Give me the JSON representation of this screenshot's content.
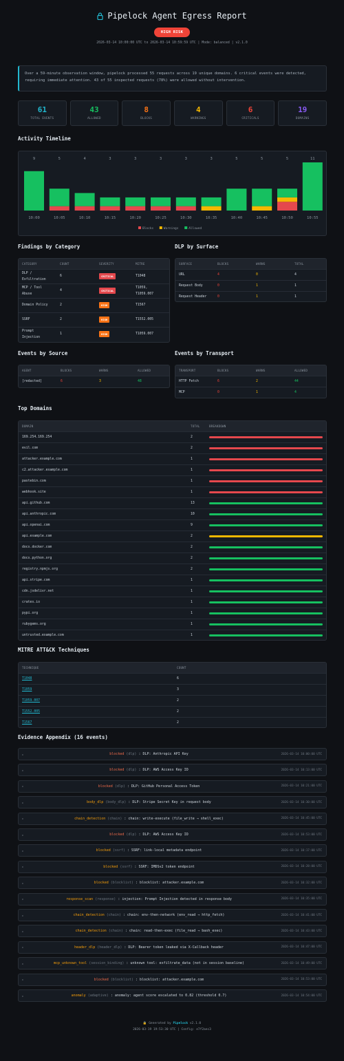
{
  "header": {
    "title": "Pipelock Agent Egress Report",
    "risk_badge": "HIGH RISK",
    "meta": "2026-03-14 10:00:00 UTC to 2026-03-14 10:59:59 UTC  |  Mode: balanced  |  v2.1.0"
  },
  "summary": "Over a 59-minute observation window, pipelock processed 55 requests across 19 unique domains. 6 critical events were detected, requiring immediate attention. 43 of 55 inspected requests (78%) were allowed without intervention.",
  "stats": [
    {
      "value": "61",
      "label": "TOTAL EVENTS",
      "color": "#22b8cf"
    },
    {
      "value": "43",
      "label": "ALLOWED",
      "color": "#16c060"
    },
    {
      "value": "8",
      "label": "BLOCKS",
      "color": "#f97316"
    },
    {
      "value": "4",
      "label": "WARNINGS",
      "color": "#f5b800"
    },
    {
      "value": "6",
      "label": "CRITICALS",
      "color": "#f04438"
    },
    {
      "value": "19",
      "label": "DOMAINS",
      "color": "#8b5cf6"
    }
  ],
  "timeline": {
    "title": "Activity Timeline",
    "chart_data": {
      "type": "bar",
      "categories": [
        "10:00",
        "10:05",
        "10:10",
        "10:15",
        "10:20",
        "10:25",
        "10:30",
        "10:35",
        "10:40",
        "10:45",
        "10:50",
        "10:55"
      ],
      "totals": [
        9,
        5,
        4,
        3,
        3,
        3,
        3,
        3,
        5,
        5,
        5,
        11
      ],
      "series": [
        {
          "name": "Blocks",
          "color": "#e5484d",
          "values": [
            0,
            1,
            1,
            1,
            1,
            1,
            1,
            0,
            0,
            0,
            2,
            0
          ]
        },
        {
          "name": "Warnings",
          "color": "#f5b800",
          "values": [
            0,
            0,
            0,
            0,
            0,
            0,
            0,
            1,
            0,
            1,
            1,
            0
          ]
        },
        {
          "name": "Allowed",
          "color": "#16c060",
          "values": [
            9,
            4,
            3,
            2,
            2,
            2,
            2,
            2,
            5,
            4,
            2,
            11
          ]
        }
      ],
      "legend": "bottom-center"
    }
  },
  "findings": {
    "title": "Findings by Category",
    "columns": [
      "CATEGORY",
      "COUNT",
      "SEVERITY",
      "MITRE"
    ],
    "rows": [
      {
        "category": "DLP / Exfiltration",
        "count": "6",
        "severity": "CRITICAL",
        "sev_color": "#e5484d",
        "mitre": "T1048"
      },
      {
        "category": "MCP / Tool Abuse",
        "count": "4",
        "severity": "CRITICAL",
        "sev_color": "#e5484d",
        "mitre": "T1059, T1059.007"
      },
      {
        "category": "Domain Policy",
        "count": "2",
        "severity": "HIGH",
        "sev_color": "#f97316",
        "mitre": "T1567"
      },
      {
        "category": "SSRF",
        "count": "2",
        "severity": "HIGH",
        "sev_color": "#f97316",
        "mitre": "T1552.005"
      },
      {
        "category": "Prompt Injection",
        "count": "1",
        "severity": "HIGH",
        "sev_color": "#f97316",
        "mitre": "T1059.007"
      }
    ]
  },
  "dlp_surface": {
    "title": "DLP by Surface",
    "columns": [
      "SURFACE",
      "BLOCKS",
      "WARNS",
      "TOTAL"
    ],
    "rows": [
      {
        "surface": "URL",
        "blocks": "4",
        "warns": "0",
        "total": "4"
      },
      {
        "surface": "Request Body",
        "blocks": "0",
        "warns": "1",
        "total": "1"
      },
      {
        "surface": "Request Header",
        "blocks": "0",
        "warns": "1",
        "total": "1"
      }
    ]
  },
  "events_source": {
    "title": "Events by Source",
    "columns": [
      "AGENT",
      "BLOCKS",
      "WARNS",
      "ALLOWED"
    ],
    "rows": [
      {
        "agent": "[redacted]",
        "blocks": "6",
        "warns": "3",
        "allowed": "48"
      }
    ]
  },
  "events_transport": {
    "title": "Events by Transport",
    "columns": [
      "TRANSPORT",
      "BLOCKS",
      "WARNS",
      "ALLOWED"
    ],
    "rows": [
      {
        "transport": "HTTP Fetch",
        "blocks": "6",
        "warns": "2",
        "allowed": "44"
      },
      {
        "transport": "MCP",
        "blocks": "0",
        "warns": "1",
        "allowed": "4"
      }
    ]
  },
  "top_domains": {
    "title": "Top Domains",
    "columns": [
      "DOMAIN",
      "TOTAL",
      "BREAKDOWN"
    ],
    "rows": [
      {
        "domain": "169.254.169.254",
        "total": "2",
        "color": "#e5484d"
      },
      {
        "domain": "evil.com",
        "total": "2",
        "color": "#e5484d"
      },
      {
        "domain": "attacker.example.com",
        "total": "1",
        "color": "#e5484d"
      },
      {
        "domain": "c2.attacker.example.com",
        "total": "1",
        "color": "#e5484d"
      },
      {
        "domain": "pastebin.com",
        "total": "1",
        "color": "#e5484d"
      },
      {
        "domain": "webhook.site",
        "total": "1",
        "color": "#e5484d"
      },
      {
        "domain": "api.github.com",
        "total": "13",
        "color": "#16c060"
      },
      {
        "domain": "api.anthropic.com",
        "total": "10",
        "color": "#16c060"
      },
      {
        "domain": "api.openai.com",
        "total": "9",
        "color": "#16c060"
      },
      {
        "domain": "api.example.com",
        "total": "2",
        "color": "#f5b800"
      },
      {
        "domain": "docs.docker.com",
        "total": "2",
        "color": "#16c060"
      },
      {
        "domain": "docs.python.org",
        "total": "2",
        "color": "#16c060"
      },
      {
        "domain": "registry.npmjs.org",
        "total": "2",
        "color": "#16c060"
      },
      {
        "domain": "api.stripe.com",
        "total": "1",
        "color": "#16c060"
      },
      {
        "domain": "cdn.jsdelivr.net",
        "total": "1",
        "color": "#16c060"
      },
      {
        "domain": "crates.io",
        "total": "1",
        "color": "#16c060"
      },
      {
        "domain": "pypi.org",
        "total": "1",
        "color": "#16c060"
      },
      {
        "domain": "rubygems.org",
        "total": "1",
        "color": "#16c060"
      },
      {
        "domain": "untrusted.example.com",
        "total": "1",
        "color": "#16c060"
      }
    ]
  },
  "mitre": {
    "title": "MITRE ATT&CK Techniques",
    "columns": [
      "TECHNIQUE",
      "COUNT"
    ],
    "rows": [
      {
        "technique": "T1048",
        "count": "6"
      },
      {
        "technique": "T1059",
        "count": "3"
      },
      {
        "technique": "T1059.007",
        "count": "2"
      },
      {
        "technique": "T1552.005",
        "count": "2"
      },
      {
        "technique": "T1567",
        "count": "2"
      }
    ]
  },
  "evidence": {
    "title": "Evidence Appendix (16 events)",
    "items": [
      {
        "kind": "blocked",
        "cat": "(dlp)",
        "text": ": DLP: Anthropic API Key",
        "ts": "2026-03-14 10:00:00 UTC",
        "orange": false
      },
      {
        "kind": "blocked",
        "cat": "(dlp)",
        "text": ": DLP: AWS Access Key ID",
        "ts": "2026-03-14 10:13:00 UTC",
        "orange": false
      },
      {
        "kind": "blocked",
        "cat": "(dlp)",
        "text": ": DLP: GitHub Personal Access Token",
        "ts": "2026-03-14 10:21:00 UTC",
        "orange": false
      },
      {
        "kind": "body_dlp",
        "cat": "(body_dlp)",
        "text": ": DLP: Stripe Secret Key in request body",
        "ts": "2026-03-14 10:30:00 UTC",
        "orange": true
      },
      {
        "kind": "chain_detection",
        "cat": "(chain)",
        "text": ": chain: write-execute (file_write → shell_exec)",
        "ts": "2026-03-14 10:45:00 UTC",
        "orange": true
      },
      {
        "kind": "blocked",
        "cat": "(dlp)",
        "text": ": DLP: AWS Access Key ID",
        "ts": "2026-03-14 10:53:00 UTC",
        "orange": false
      },
      {
        "kind": "blocked",
        "cat": "(ssrf)",
        "text": ": SSRF: link-local metadata endpoint",
        "ts": "2026-03-14 10:17:00 UTC",
        "orange": true
      },
      {
        "kind": "blocked",
        "cat": "(ssrf)",
        "text": ": SSRF: IMDSv2 token endpoint",
        "ts": "2026-03-14 10:28:00 UTC",
        "orange": true
      },
      {
        "kind": "blocked",
        "cat": "(blocklist)",
        "text": ": blocklist: attacker.example.com",
        "ts": "2026-03-14 10:32:00 UTC",
        "orange": true
      },
      {
        "kind": "response_scan",
        "cat": "(response)",
        "text": ": injection: Prompt Injection detected in response body",
        "ts": "2026-03-14 10:35:00 UTC",
        "orange": true
      },
      {
        "kind": "chain_detection",
        "cat": "(chain)",
        "text": ": chain: env-then-network (env_read → http_fetch)",
        "ts": "2026-03-14 10:41:00 UTC",
        "orange": true
      },
      {
        "kind": "chain_detection",
        "cat": "(chain)",
        "text": ": chain: read-then-exec (file_read → bash_exec)",
        "ts": "2026-03-14 10:43:00 UTC",
        "orange": true
      },
      {
        "kind": "header_dlp",
        "cat": "(header_dlp)",
        "text": ": DLP: Bearer token leaked via X-Callback header",
        "ts": "2026-03-14 10:47:00 UTC",
        "orange": true
      },
      {
        "kind": "mcp_unknown_tool",
        "cat": "(session_binding)",
        "text": ": unknown tool: exfiltrate_data (not in session baseline)",
        "ts": "2026-03-14 10:49:00 UTC",
        "orange": true
      },
      {
        "kind": "blocked",
        "cat": "(blocklist)",
        "text": ": blocklist: attacker.example.com",
        "ts": "2026-03-14 10:53:00 UTC",
        "orange": false
      },
      {
        "kind": "anomaly",
        "cat": "(adaptive)",
        "text": ": anomaly: agent score escalated to 0.82 (threshold 0.7)",
        "ts": "2026-03-14 10:54:00 UTC",
        "orange": true
      }
    ]
  },
  "footer": {
    "generated_prefix": "Generated by",
    "brand": "Pipelock",
    "version": "v2.1.0",
    "line2": "2026-03-19 19:53:30 UTC  |  Config: e7f2aec3"
  }
}
